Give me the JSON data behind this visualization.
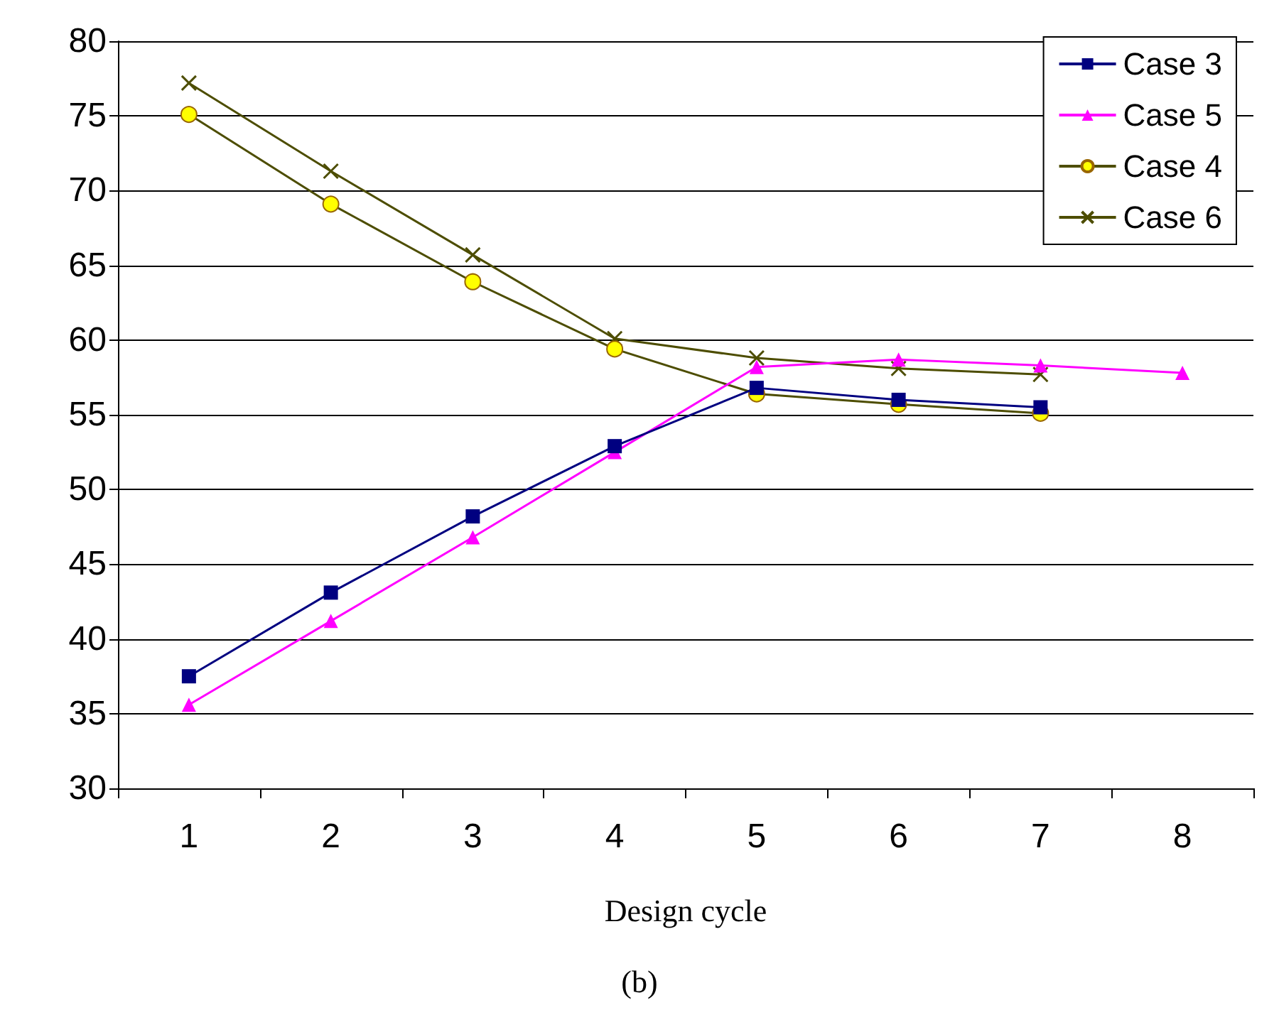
{
  "chart_data": {
    "type": "line",
    "xlabel": "Design cycle",
    "annotations": [
      "(b)"
    ],
    "categories": [
      "1",
      "2",
      "3",
      "4",
      "5",
      "6",
      "7",
      "8"
    ],
    "series": [
      {
        "name": "Case 3",
        "color": "#000080",
        "marker": "square",
        "values": [
          37.5,
          43.1,
          48.2,
          52.9,
          56.8,
          56.0,
          55.5,
          null
        ]
      },
      {
        "name": "Case 5",
        "color": "#ff00ff",
        "marker": "triangle",
        "values": [
          35.6,
          41.2,
          46.8,
          52.5,
          58.2,
          58.7,
          58.3,
          57.8
        ]
      },
      {
        "name": "Case 4",
        "color": "#4d4d00",
        "marker": "circle",
        "values": [
          75.1,
          69.1,
          63.9,
          59.4,
          56.4,
          55.7,
          55.1,
          null
        ]
      },
      {
        "name": "Case 6",
        "color": "#4d4d00",
        "marker": "cross",
        "values": [
          77.2,
          71.3,
          65.7,
          60.1,
          58.8,
          58.1,
          57.7,
          null
        ]
      }
    ],
    "ylim": [
      30,
      80
    ],
    "yticks": [
      30,
      35,
      40,
      45,
      50,
      55,
      60,
      65,
      70,
      75,
      80
    ],
    "grid": "y",
    "legend": "top right"
  }
}
